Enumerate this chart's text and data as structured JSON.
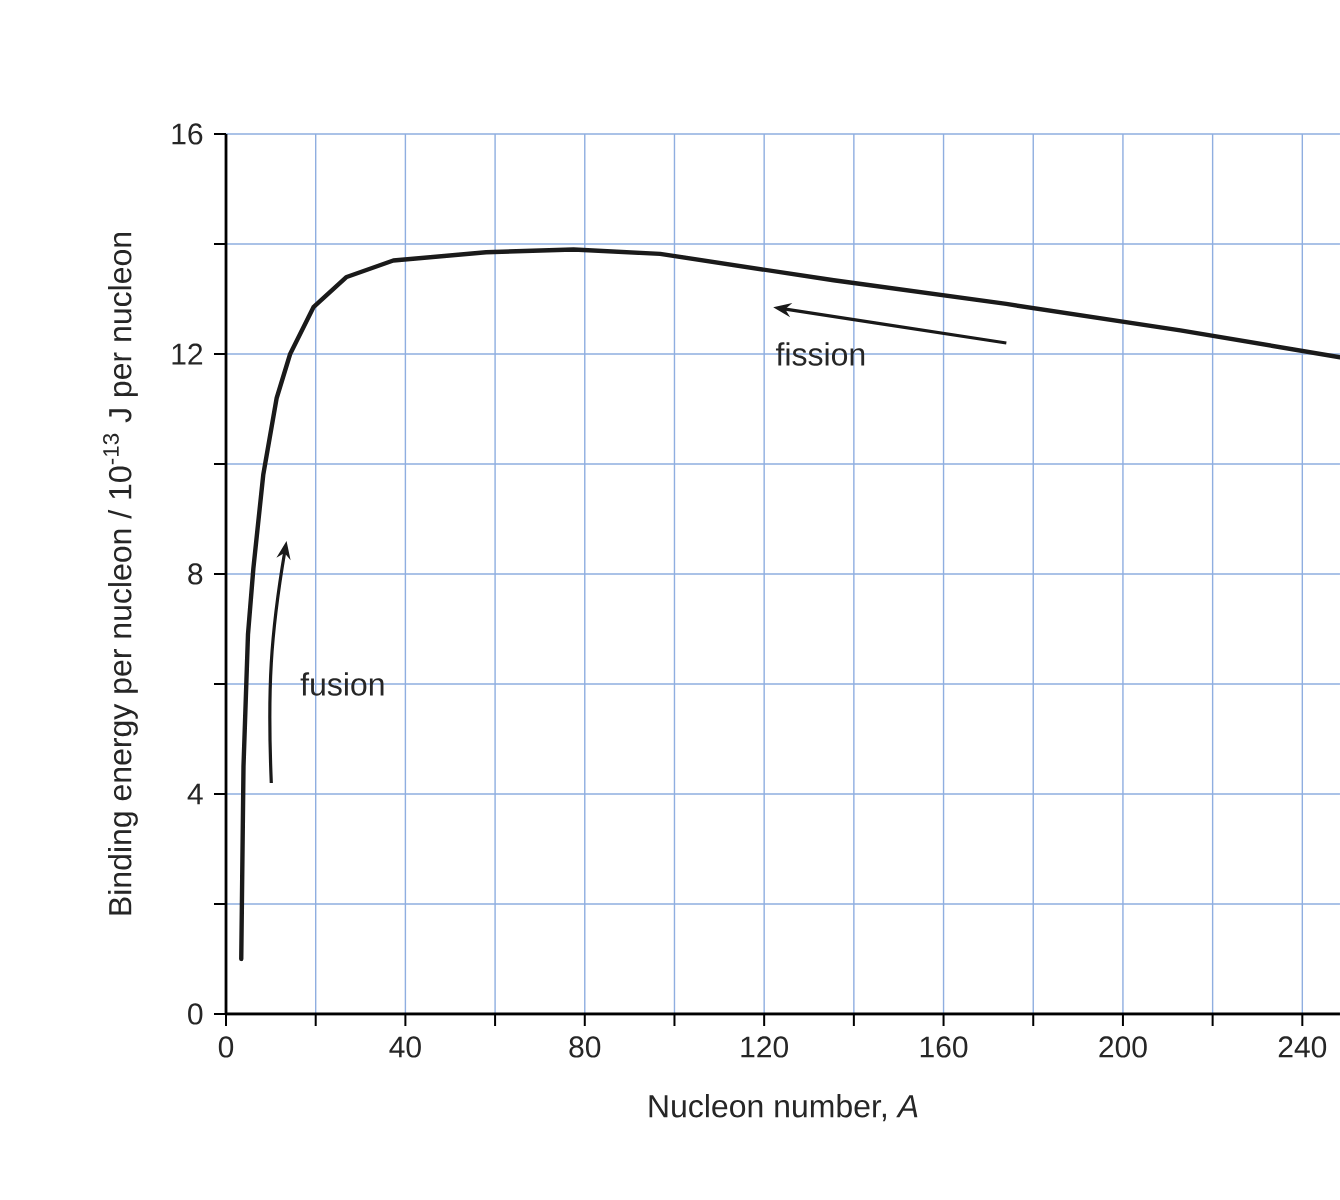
{
  "chart_data": {
    "type": "line",
    "xlabel": "Nucleon number, *A*",
    "ylabel": "Binding energy per nucleon / 10$^{-13}$ J per nucleon",
    "x": [
      3.4,
      3.9,
      4.9,
      6.1,
      8.3,
      11.3,
      14.3,
      19.5,
      26.9,
      37.3,
      58,
      77.5,
      96.8,
      135.5,
      174,
      212.8,
      248.4
    ],
    "series": [
      {
        "color": "#1a1a1a",
        "values": [
          1.0,
          4.5,
          6.9,
          8.1,
          9.8,
          11.2,
          12.0,
          12.85,
          13.4,
          13.7,
          13.85,
          13.9,
          13.82,
          13.34,
          12.91,
          12.43,
          11.94
        ]
      }
    ],
    "xlim": [
      0,
      248.4
    ],
    "ylim": [
      0,
      16
    ],
    "xticks": [
      0,
      {
        "value": 20,
        "label": null
      },
      40,
      {
        "value": 60,
        "label": null
      },
      80,
      {
        "value": 100,
        "label": null
      },
      120,
      {
        "value": 140,
        "label": null
      },
      160,
      {
        "value": 180,
        "label": null
      },
      200,
      {
        "value": 220,
        "label": null
      },
      240
    ],
    "yticks": [
      0,
      {
        "value": 2,
        "label": null
      },
      4,
      {
        "value": 6,
        "label": null
      },
      8,
      {
        "value": 10,
        "label": null
      },
      12,
      {
        "value": 14,
        "label": null
      },
      16
    ],
    "grid": true,
    "marker": "none",
    "line_style": "solid",
    "annotations": [
      "fusion",
      "fission"
    ]
  }
}
